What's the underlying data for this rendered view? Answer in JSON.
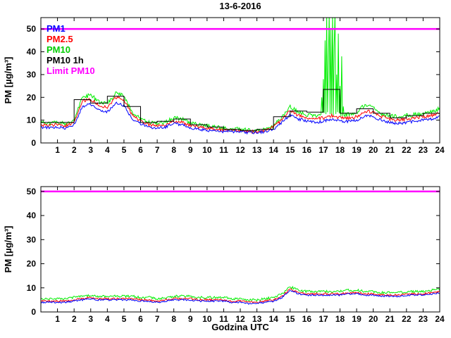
{
  "title": "13-6-2016",
  "xlabel": "Godzina UTC",
  "noise_seed": 11,
  "colors": {
    "pm1": "#0000ff",
    "pm25": "#ff0000",
    "pm10": "#00ee00",
    "pm10_1h": "#000000",
    "limit": "#ff00ff"
  },
  "chart_data": [
    {
      "type": "line",
      "title": "13-6-2016",
      "ylabel": "PM [µg/m³]",
      "xlabel": "",
      "xlim": [
        0,
        24
      ],
      "ylim": [
        0,
        55
      ],
      "xticks": [
        1,
        2,
        3,
        4,
        5,
        6,
        7,
        8,
        9,
        10,
        11,
        12,
        13,
        14,
        15,
        16,
        17,
        18,
        19,
        20,
        21,
        22,
        23,
        24
      ],
      "yticks": [
        0,
        10,
        20,
        30,
        40,
        50
      ],
      "grid": false,
      "legend_position": "upper-left",
      "limit_line": {
        "y": 50,
        "color": "#ff00ff",
        "label": "Limit PM10"
      },
      "legend": [
        {
          "label": "PM1",
          "color": "#0000ff"
        },
        {
          "label": "PM2.5",
          "color": "#ff0000"
        },
        {
          "label": "PM10",
          "color": "#00cc00"
        },
        {
          "label": "PM10 1h",
          "color": "#000000"
        },
        {
          "label": "Limit PM10",
          "color": "#ff00ff"
        }
      ],
      "series": [
        {
          "name": "PM10",
          "color": "#00ee00",
          "style": "noisy",
          "x0": 0,
          "dx": 0.5,
          "noise": 0.9,
          "values": [
            9,
            8.5,
            9,
            8.5,
            10,
            20,
            21,
            18,
            17,
            22,
            21,
            13,
            10.5,
            9,
            8.5,
            9,
            11,
            10.5,
            8.5,
            8,
            7.5,
            7,
            6.5,
            6,
            6,
            5.5,
            5.5,
            6,
            7.5,
            11,
            16,
            13.5,
            12.5,
            12,
            12.5,
            13,
            12.5,
            12.5,
            13,
            17,
            15.5,
            13,
            12,
            11.5,
            12,
            12.5,
            13,
            13.5,
            15
          ],
          "spikes": [
            [
              16.9,
              20
            ],
            [
              17.0,
              28
            ],
            [
              17.1,
              45
            ],
            [
              17.2,
              57
            ],
            [
              17.3,
              35
            ],
            [
              17.35,
              57
            ],
            [
              17.45,
              50
            ],
            [
              17.55,
              57
            ],
            [
              17.65,
              42
            ],
            [
              17.7,
              57
            ],
            [
              17.8,
              30
            ],
            [
              17.9,
              48
            ],
            [
              18.0,
              25
            ],
            [
              18.1,
              38
            ],
            [
              18.2,
              16
            ]
          ]
        },
        {
          "name": "PM2.5",
          "color": "#ff0000",
          "style": "noisy",
          "x0": 0,
          "dx": 0.5,
          "noise": 0.7,
          "values": [
            8,
            7.5,
            8,
            7.5,
            9,
            18.5,
            19,
            16.5,
            15.5,
            20,
            19,
            12,
            9.5,
            8,
            7.5,
            8,
            9.5,
            9,
            7.5,
            7,
            6.5,
            6,
            5.5,
            5.5,
            5.5,
            5,
            5,
            5.5,
            7,
            10,
            14.5,
            12,
            11,
            10.5,
            11,
            12,
            11,
            11,
            11.5,
            14,
            13.5,
            11.5,
            10.5,
            10,
            10.5,
            11,
            11.5,
            12,
            13
          ],
          "spikes": []
        },
        {
          "name": "PM1",
          "color": "#0000ff",
          "style": "noisy",
          "x0": 0,
          "dx": 0.5,
          "noise": 0.6,
          "values": [
            7,
            6.5,
            7,
            6.5,
            8,
            16,
            17,
            14.5,
            13.5,
            17.5,
            16.5,
            10.5,
            8.5,
            7,
            6.5,
            7,
            8.5,
            8,
            6.5,
            6,
            5.5,
            5.5,
            5,
            5,
            5,
            4.5,
            4.5,
            5,
            6,
            9,
            12.5,
            10.5,
            9.5,
            9,
            9.5,
            10.5,
            9.5,
            9.5,
            10,
            12,
            11.5,
            10,
            9,
            8.5,
            9,
            9.5,
            10,
            10.5,
            11.5
          ],
          "spikes": []
        },
        {
          "name": "PM10 1h",
          "color": "#000000",
          "style": "step",
          "x0": 0,
          "dx": 1,
          "noise": 0,
          "values": [
            9,
            9,
            19,
            17.5,
            20.5,
            16,
            9,
            9.5,
            10.5,
            8,
            7,
            6,
            5.5,
            6,
            11.5,
            14,
            13.5,
            23.5,
            13,
            15,
            13,
            11,
            12,
            13
          ],
          "spikes": []
        }
      ]
    },
    {
      "type": "line",
      "title": "",
      "ylabel": "PM [µg/m³]",
      "xlabel": "Godzina UTC",
      "xlim": [
        0,
        24
      ],
      "ylim": [
        0,
        52
      ],
      "xticks": [
        1,
        2,
        3,
        4,
        5,
        6,
        7,
        8,
        9,
        10,
        11,
        12,
        13,
        14,
        15,
        16,
        17,
        18,
        19,
        20,
        21,
        22,
        23,
        24
      ],
      "yticks": [
        0,
        10,
        20,
        30,
        40,
        50
      ],
      "grid": false,
      "limit_line": {
        "y": 50,
        "color": "#ff00ff",
        "label": "Limit PM10"
      },
      "series": [
        {
          "name": "PM10",
          "color": "#00ee00",
          "style": "noisy",
          "x0": 0,
          "dx": 0.5,
          "noise": 0.5,
          "values": [
            5.5,
            5.5,
            5.5,
            5.5,
            6,
            6.5,
            7,
            6.5,
            6.5,
            6.5,
            6.5,
            6.5,
            6,
            6,
            5.5,
            6,
            6.5,
            6.5,
            6.5,
            6,
            6,
            6,
            6,
            5.5,
            5.5,
            5,
            5,
            5.5,
            6,
            7.5,
            10.5,
            9,
            8.5,
            8.5,
            8.5,
            8.5,
            8.5,
            9,
            9,
            8.5,
            8.5,
            8,
            8,
            8,
            8.5,
            8.5,
            8.5,
            9,
            9.5
          ],
          "spikes": []
        },
        {
          "name": "PM2.5",
          "color": "#ff0000",
          "style": "noisy",
          "x0": 0,
          "dx": 0.5,
          "noise": 0.4,
          "values": [
            4.5,
            4.5,
            4.5,
            4.5,
            5,
            5.5,
            6,
            5.5,
            5.5,
            5.5,
            5.5,
            5.5,
            5,
            5,
            4.5,
            5,
            5.5,
            5.5,
            5.5,
            5,
            5,
            5,
            5,
            4.5,
            4.5,
            4,
            4,
            4.5,
            5,
            6.5,
            9.5,
            8,
            7.5,
            7.5,
            7.5,
            7.5,
            7.5,
            8,
            8,
            7.5,
            7.5,
            7,
            7,
            7,
            7.5,
            7.5,
            7.5,
            8,
            8.5
          ],
          "spikes": []
        },
        {
          "name": "PM1",
          "color": "#0000ff",
          "style": "noisy",
          "x0": 0,
          "dx": 0.5,
          "noise": 0.35,
          "values": [
            4,
            4,
            4,
            4,
            4.5,
            5,
            5.5,
            5,
            5,
            5,
            5,
            5,
            4.5,
            4.5,
            4,
            4.5,
            5,
            5,
            5,
            4.5,
            4.5,
            4.5,
            4.5,
            4,
            4,
            3.5,
            3.5,
            4,
            4.5,
            6,
            9,
            7.5,
            7,
            7,
            7,
            7,
            7,
            7.5,
            7.5,
            7,
            7,
            6.5,
            6.5,
            6.5,
            7,
            7,
            7,
            7.5,
            8
          ],
          "spikes": []
        }
      ]
    }
  ]
}
